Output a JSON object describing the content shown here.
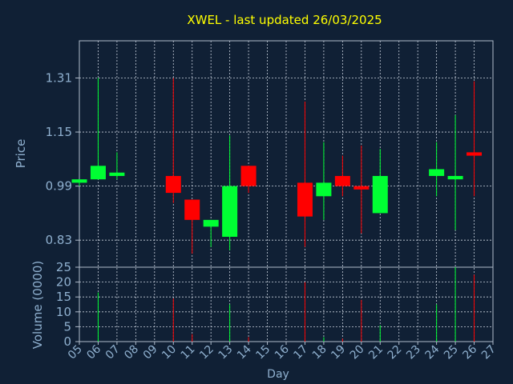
{
  "title": "XWEL - last updated 26/03/2025",
  "colors": {
    "background": "#102035",
    "title": "#ffff00",
    "axis_text": "#8fb0cf",
    "frame": "#b0bccc",
    "grid": "#c8d0dc",
    "up": "#00ff33",
    "down": "#ff0000"
  },
  "chart_data": [
    {
      "type": "candlestick",
      "ylabel": "Price",
      "ylim": [
        0.75,
        1.42
      ],
      "yticks": [
        0.83,
        0.99,
        1.15,
        1.31
      ],
      "ytick_labels": [
        "0.83",
        "0.99",
        "1.15",
        "1.31"
      ],
      "grid": true,
      "candles": [
        {
          "day": "05",
          "open": 1.0,
          "high": 1.01,
          "low": 0.99,
          "close": 1.01
        },
        {
          "day": "06",
          "open": 1.01,
          "high": 1.31,
          "low": 1.01,
          "close": 1.05
        },
        {
          "day": "07",
          "open": 1.02,
          "high": 1.09,
          "low": 1.01,
          "close": 1.03
        },
        {
          "day": "10",
          "open": 1.02,
          "high": 1.31,
          "low": 0.94,
          "close": 0.97
        },
        {
          "day": "11",
          "open": 0.95,
          "high": 0.95,
          "low": 0.79,
          "close": 0.89
        },
        {
          "day": "12",
          "open": 0.87,
          "high": 0.89,
          "low": 0.81,
          "close": 0.89
        },
        {
          "day": "13",
          "open": 0.84,
          "high": 1.14,
          "low": 0.8,
          "close": 0.99
        },
        {
          "day": "14",
          "open": 1.05,
          "high": 1.05,
          "low": 0.97,
          "close": 0.99
        },
        {
          "day": "17",
          "open": 1.0,
          "high": 1.24,
          "low": 0.81,
          "close": 0.9
        },
        {
          "day": "18",
          "open": 0.96,
          "high": 1.12,
          "low": 0.89,
          "close": 1.0
        },
        {
          "day": "19",
          "open": 1.02,
          "high": 1.08,
          "low": 0.96,
          "close": 0.99
        },
        {
          "day": "20",
          "open": 0.99,
          "high": 1.11,
          "low": 0.85,
          "close": 0.98
        },
        {
          "day": "21",
          "open": 0.91,
          "high": 1.1,
          "low": 0.91,
          "close": 1.02
        },
        {
          "day": "24",
          "open": 1.02,
          "high": 1.12,
          "low": 0.96,
          "close": 1.04
        },
        {
          "day": "25",
          "open": 1.01,
          "high": 1.2,
          "low": 0.86,
          "close": 1.02
        },
        {
          "day": "26",
          "open": 1.09,
          "high": 1.3,
          "low": 0.96,
          "close": 1.08
        }
      ]
    },
    {
      "type": "bar",
      "ylabel": "Volume (0000)",
      "xlabel": "Day",
      "ylim": [
        0,
        25
      ],
      "yticks": [
        0,
        5,
        10,
        15,
        20,
        25
      ],
      "ytick_labels": [
        "0",
        "5",
        "10",
        "15",
        "20",
        "25"
      ],
      "grid": true,
      "categories": [
        "05",
        "06",
        "07",
        "08",
        "09",
        "10",
        "11",
        "12",
        "13",
        "14",
        "15",
        "16",
        "17",
        "18",
        "19",
        "20",
        "21",
        "22",
        "23",
        "24",
        "25",
        "26",
        "27"
      ],
      "volumes": [
        {
          "day": "06",
          "value": 16.5,
          "direction": "up"
        },
        {
          "day": "10",
          "value": 14.5,
          "direction": "down"
        },
        {
          "day": "11",
          "value": 2.5,
          "direction": "down"
        },
        {
          "day": "13",
          "value": 12.5,
          "direction": "up"
        },
        {
          "day": "14",
          "value": 1.5,
          "direction": "down"
        },
        {
          "day": "17",
          "value": 20.0,
          "direction": "down"
        },
        {
          "day": "18",
          "value": 1.5,
          "direction": "up"
        },
        {
          "day": "19",
          "value": 1.0,
          "direction": "down"
        },
        {
          "day": "20",
          "value": 14.0,
          "direction": "down"
        },
        {
          "day": "21",
          "value": 5.5,
          "direction": "up"
        },
        {
          "day": "24",
          "value": 12.5,
          "direction": "up"
        },
        {
          "day": "25",
          "value": 25.0,
          "direction": "up"
        },
        {
          "day": "26",
          "value": 22.5,
          "direction": "down"
        }
      ]
    }
  ]
}
